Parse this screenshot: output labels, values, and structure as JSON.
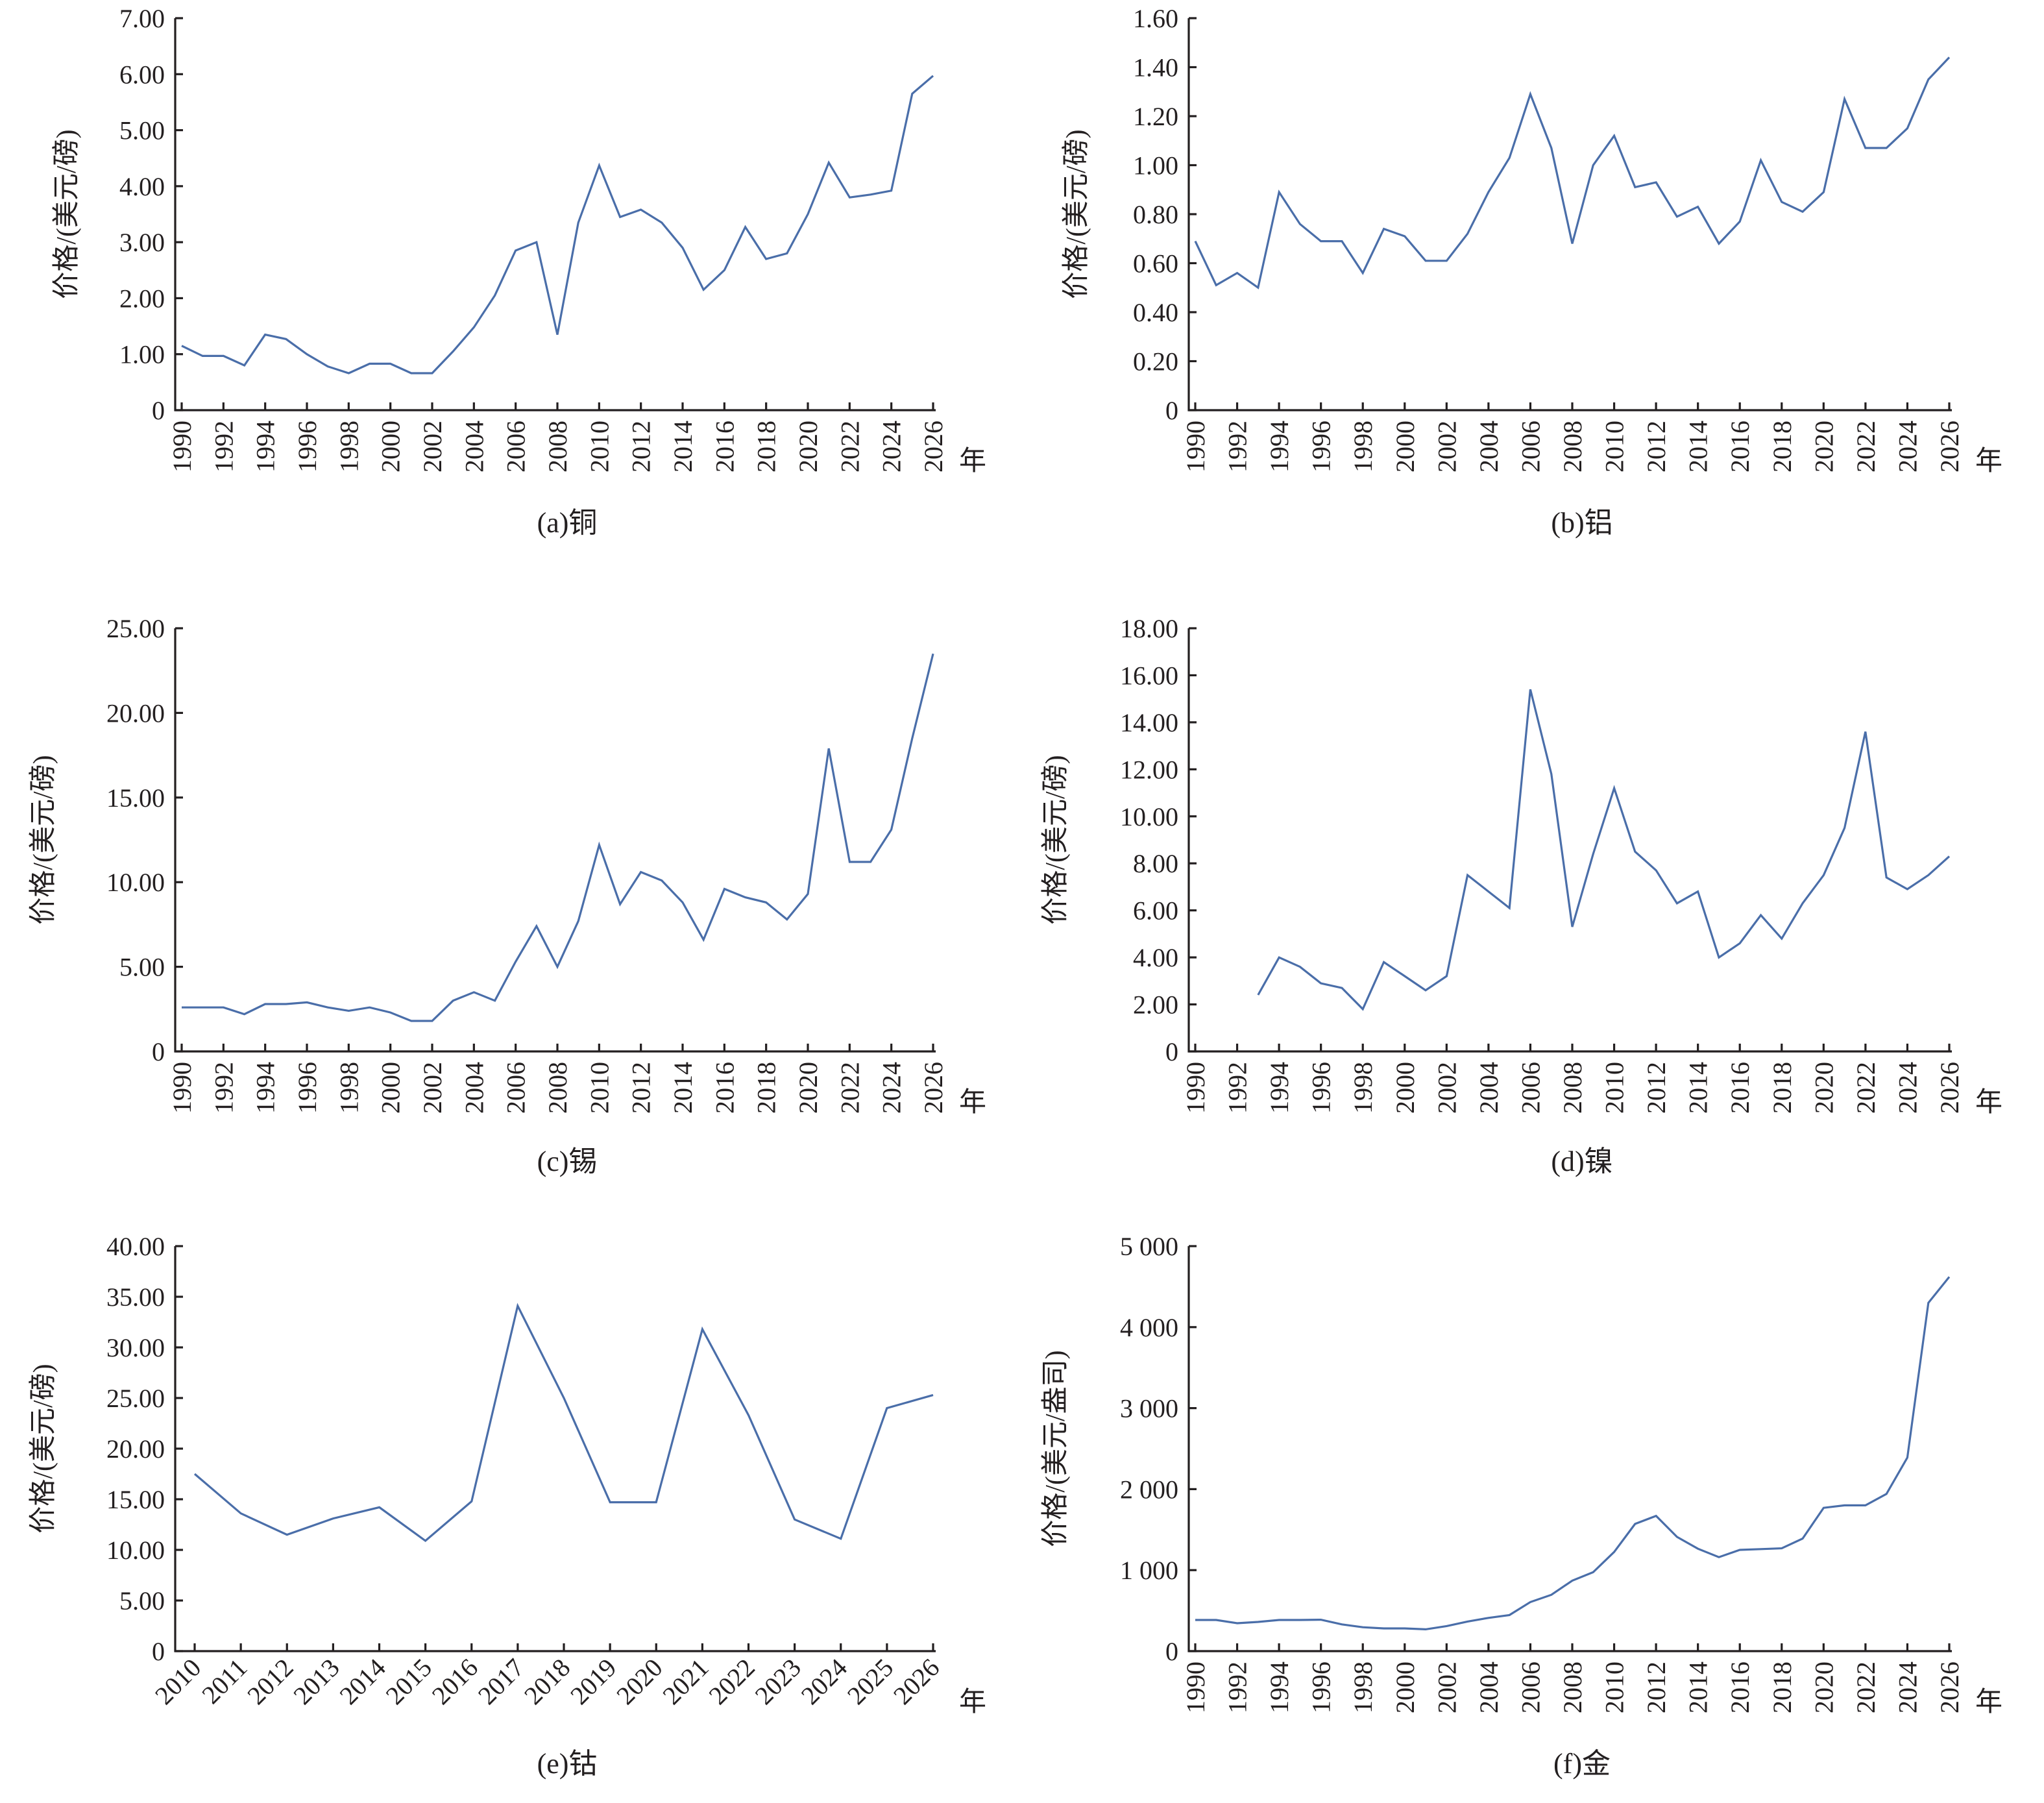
{
  "colors": {
    "line": "#4a6ea9",
    "axis": "#231f20"
  },
  "x_unit": "年",
  "chart_data": [
    {
      "type": "line",
      "caption": "(a)铜",
      "ylabel": "价格/(美元/磅)",
      "xlabel": "年",
      "ylim": [
        0,
        7
      ],
      "yticks": [
        0,
        1,
        2,
        3,
        4,
        5,
        6,
        7
      ],
      "ytick_labels": [
        "0",
        "1.00",
        "2.00",
        "3.00",
        "4.00",
        "5.00",
        "6.00",
        "7.00"
      ],
      "xlim": [
        1990,
        2026
      ],
      "xtick_step": 2,
      "xtick_rotation": "vertical",
      "xtick_labels": [
        "1990",
        "1992",
        "1994",
        "1996",
        "1998",
        "2000",
        "2002",
        "2004",
        "2006",
        "2008",
        "2010",
        "2012",
        "2014",
        "2016",
        "2018",
        "2020",
        "2022",
        "2024",
        "2026"
      ],
      "x": [
        1990,
        1991,
        1992,
        1993,
        1994,
        1995,
        1996,
        1997,
        1998,
        1999,
        2000,
        2001,
        2002,
        2003,
        2004,
        2005,
        2006,
        2007,
        2008,
        2009,
        2010,
        2011,
        2012,
        2013,
        2014,
        2015,
        2016,
        2017,
        2018,
        2019,
        2020,
        2021,
        2022,
        2023,
        2024,
        2025,
        2026
      ],
      "values": [
        1.15,
        0.97,
        0.97,
        0.8,
        1.35,
        1.27,
        1.0,
        0.78,
        0.66,
        0.83,
        0.83,
        0.66,
        0.66,
        1.05,
        1.48,
        2.05,
        2.85,
        3.0,
        1.35,
        3.35,
        4.37,
        3.45,
        3.58,
        3.35,
        2.9,
        2.15,
        2.5,
        3.27,
        2.7,
        2.8,
        3.5,
        4.42,
        3.8,
        3.85,
        3.92,
        5.65,
        5.97
      ]
    },
    {
      "type": "line",
      "caption": "(b)铝",
      "ylabel": "价格/(美元/磅)",
      "xlabel": "年",
      "ylim": [
        0,
        1.6
      ],
      "yticks": [
        0,
        0.2,
        0.4,
        0.6,
        0.8,
        1.0,
        1.2,
        1.4,
        1.6
      ],
      "ytick_labels": [
        "0",
        "0.20",
        "0.40",
        "0.60",
        "0.80",
        "1.00",
        "1.20",
        "1.40",
        "1.60"
      ],
      "xlim": [
        1990,
        2026
      ],
      "xtick_step": 2,
      "xtick_rotation": "vertical",
      "xtick_labels": [
        "1990",
        "1992",
        "1994",
        "1996",
        "1998",
        "2000",
        "2002",
        "2004",
        "2006",
        "2008",
        "2010",
        "2012",
        "2014",
        "2016",
        "2018",
        "2020",
        "2022",
        "2024",
        "2026"
      ],
      "x": [
        1990,
        1991,
        1992,
        1993,
        1994,
        1995,
        1996,
        1997,
        1998,
        1999,
        2000,
        2001,
        2002,
        2003,
        2004,
        2005,
        2006,
        2007,
        2008,
        2009,
        2010,
        2011,
        2012,
        2013,
        2014,
        2015,
        2016,
        2017,
        2018,
        2019,
        2020,
        2021,
        2022,
        2023,
        2024,
        2025,
        2026
      ],
      "values": [
        0.69,
        0.51,
        0.56,
        0.5,
        0.89,
        0.76,
        0.69,
        0.69,
        0.56,
        0.74,
        0.71,
        0.61,
        0.61,
        0.72,
        0.89,
        1.03,
        1.29,
        1.07,
        0.68,
        1.0,
        1.12,
        0.91,
        0.93,
        0.79,
        0.83,
        0.68,
        0.77,
        1.02,
        0.85,
        0.81,
        0.89,
        1.27,
        1.07,
        1.07,
        1.15,
        1.35,
        1.44
      ]
    },
    {
      "type": "line",
      "caption": "(c)锡",
      "ylabel": "价格/(美元/磅)",
      "xlabel": "年",
      "ylim": [
        0,
        25
      ],
      "yticks": [
        0,
        5,
        10,
        15,
        20,
        25
      ],
      "ytick_labels": [
        "0",
        "5.00",
        "10.00",
        "15.00",
        "20.00",
        "25.00"
      ],
      "xlim": [
        1990,
        2026
      ],
      "xtick_step": 2,
      "xtick_rotation": "vertical",
      "xtick_labels": [
        "1990",
        "1992",
        "1994",
        "1996",
        "1998",
        "2000",
        "2002",
        "2004",
        "2006",
        "2008",
        "2010",
        "2012",
        "2014",
        "2016",
        "2018",
        "2020",
        "2022",
        "2024",
        "2026"
      ],
      "x": [
        1990,
        1991,
        1992,
        1993,
        1994,
        1995,
        1996,
        1997,
        1998,
        1999,
        2000,
        2001,
        2002,
        2003,
        2004,
        2005,
        2006,
        2007,
        2008,
        2009,
        2010,
        2011,
        2012,
        2013,
        2014,
        2015,
        2016,
        2017,
        2018,
        2019,
        2020,
        2021,
        2022,
        2023,
        2024,
        2025,
        2026
      ],
      "values": [
        2.6,
        2.6,
        2.6,
        2.2,
        2.8,
        2.8,
        2.9,
        2.6,
        2.4,
        2.6,
        2.3,
        1.8,
        1.8,
        3.0,
        3.5,
        3.0,
        5.3,
        7.4,
        5.0,
        7.7,
        12.2,
        8.7,
        10.6,
        10.1,
        8.8,
        6.6,
        9.6,
        9.1,
        8.8,
        7.8,
        9.3,
        17.9,
        11.2,
        11.2,
        13.1,
        18.5,
        23.5
      ]
    },
    {
      "type": "line",
      "caption": "(d)镍",
      "ylabel": "价格/(美元/磅)",
      "xlabel": "年",
      "ylim": [
        0,
        18
      ],
      "yticks": [
        0,
        2,
        4,
        6,
        8,
        10,
        12,
        14,
        16,
        18
      ],
      "ytick_labels": [
        "0",
        "2.00",
        "4.00",
        "6.00",
        "8.00",
        "10.00",
        "12.00",
        "14.00",
        "16.00",
        "18.00"
      ],
      "xlim": [
        1990,
        2026
      ],
      "xtick_step": 2,
      "xtick_rotation": "vertical",
      "xtick_labels": [
        "1990",
        "1992",
        "1994",
        "1996",
        "1998",
        "2000",
        "2002",
        "2004",
        "2006",
        "2008",
        "2010",
        "2012",
        "2014",
        "2016",
        "2018",
        "2020",
        "2022",
        "2024",
        "2026"
      ],
      "x": [
        1993,
        1994,
        1995,
        1996,
        1997,
        1998,
        1999,
        2000,
        2001,
        2002,
        2003,
        2004,
        2005,
        2006,
        2007,
        2008,
        2009,
        2010,
        2011,
        2012,
        2013,
        2014,
        2015,
        2016,
        2017,
        2018,
        2019,
        2020,
        2021,
        2022,
        2023,
        2024,
        2025,
        2026
      ],
      "values": [
        2.4,
        4.0,
        3.6,
        2.9,
        2.7,
        1.8,
        3.8,
        3.2,
        2.6,
        3.2,
        7.5,
        6.8,
        6.1,
        15.4,
        11.8,
        5.3,
        8.4,
        11.2,
        8.5,
        7.7,
        6.3,
        6.8,
        4.0,
        4.6,
        5.8,
        4.8,
        6.3,
        7.5,
        9.5,
        13.6,
        7.4,
        6.9,
        7.5,
        8.3
      ]
    },
    {
      "type": "line",
      "caption": "(e)钴",
      "ylabel": "价格/(美元/磅)",
      "xlabel": "年",
      "ylim": [
        0,
        40
      ],
      "yticks": [
        0,
        5,
        10,
        15,
        20,
        25,
        30,
        35,
        40
      ],
      "ytick_labels": [
        "0",
        "5.00",
        "10.00",
        "15.00",
        "20.00",
        "25.00",
        "30.00",
        "35.00",
        "40.00"
      ],
      "xlim": [
        2010,
        2026
      ],
      "xtick_step": 1,
      "xtick_rotation": "diagonal",
      "xtick_labels": [
        "2010",
        "2011",
        "2012",
        "2013",
        "2014",
        "2015",
        "2016",
        "2017",
        "2018",
        "2019",
        "2020",
        "2021",
        "2022",
        "2023",
        "2024",
        "2025",
        "2026"
      ],
      "x": [
        2010,
        2011,
        2012,
        2013,
        2014,
        2015,
        2016,
        2017,
        2018,
        2019,
        2020,
        2021,
        2022,
        2023,
        2024,
        2025,
        2026
      ],
      "values": [
        17.5,
        13.6,
        11.5,
        13.1,
        14.2,
        10.9,
        14.8,
        34.1,
        25.0,
        14.7,
        14.7,
        31.8,
        23.3,
        13.0,
        11.1,
        24.0,
        25.3
      ]
    },
    {
      "type": "line",
      "caption": "(f)金",
      "ylabel": "价格/(美元/盎司)",
      "xlabel": "年",
      "ylim": [
        0,
        5000
      ],
      "yticks": [
        0,
        1000,
        2000,
        3000,
        4000,
        5000
      ],
      "ytick_labels": [
        "0",
        "1 000",
        "2 000",
        "3 000",
        "4 000",
        "5 000"
      ],
      "xlim": [
        1990,
        2026
      ],
      "xtick_step": 2,
      "xtick_rotation": "vertical",
      "xtick_labels": [
        "1990",
        "1992",
        "1994",
        "1996",
        "1998",
        "2000",
        "2002",
        "2004",
        "2006",
        "2008",
        "2010",
        "2012",
        "2014",
        "2016",
        "2018",
        "2020",
        "2022",
        "2024",
        "2026"
      ],
      "x": [
        1990,
        1991,
        1992,
        1993,
        1994,
        1995,
        1996,
        1997,
        1998,
        1999,
        2000,
        2001,
        2002,
        2003,
        2004,
        2005,
        2006,
        2007,
        2008,
        2009,
        2010,
        2011,
        2012,
        2013,
        2014,
        2015,
        2016,
        2017,
        2018,
        2019,
        2020,
        2021,
        2022,
        2023,
        2024,
        2025,
        2026
      ],
      "values": [
        385,
        385,
        345,
        360,
        385,
        385,
        388,
        330,
        295,
        280,
        280,
        270,
        310,
        365,
        410,
        445,
        605,
        695,
        870,
        975,
        1225,
        1570,
        1670,
        1410,
        1265,
        1160,
        1250,
        1260,
        1270,
        1390,
        1770,
        1800,
        1800,
        1940,
        2390,
        4300,
        4620
      ]
    }
  ]
}
